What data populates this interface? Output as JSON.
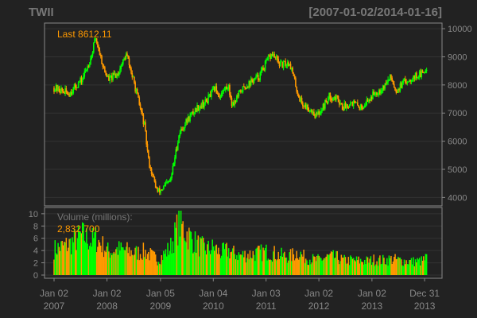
{
  "chart": {
    "symbol": "TWII",
    "range_label": "[2007-01-02/2014-01-16]",
    "last_label": "Last 8612.11",
    "volume_title": "Volume (millions):",
    "volume_last": "2,832,700"
  },
  "colors": {
    "background": "#222222",
    "axis": "#888888",
    "grid": "#333333",
    "up": "#00ff00",
    "down": "#ff9900",
    "title_gray": "#777777",
    "label_orange": "#ff9900"
  },
  "chart_data": [
    {
      "type": "candlestick",
      "title": "TWII",
      "date_range": [
        "2007-01-02",
        "2014-01-16"
      ],
      "ylim": [
        3700,
        10200
      ],
      "y_ticks": [
        4000,
        5000,
        6000,
        7000,
        8000,
        9000,
        10000
      ],
      "last_value": 8612.11,
      "x": [
        "2007-01",
        "2007-04",
        "2007-07",
        "2007-09",
        "2007-10",
        "2007-12",
        "2008-01",
        "2008-03",
        "2008-05",
        "2008-07",
        "2008-09",
        "2008-10",
        "2008-11",
        "2008-12",
        "2009-01",
        "2009-03",
        "2009-05",
        "2009-07",
        "2009-09",
        "2009-11",
        "2010-01",
        "2010-02",
        "2010-04",
        "2010-05",
        "2010-07",
        "2010-09",
        "2010-11",
        "2011-01",
        "2011-02",
        "2011-04",
        "2011-06",
        "2011-08",
        "2011-09",
        "2011-11",
        "2011-12",
        "2012-01",
        "2012-03",
        "2012-05",
        "2012-06",
        "2012-08",
        "2012-10",
        "2012-12",
        "2013-01",
        "2013-03",
        "2013-05",
        "2013-06",
        "2013-08",
        "2013-10",
        "2013-12",
        "2014-01"
      ],
      "close": [
        7900,
        7700,
        8200,
        9000,
        9700,
        8500,
        8200,
        8400,
        9100,
        7900,
        6600,
        5300,
        4700,
        4200,
        4300,
        4600,
        6300,
        6800,
        7200,
        7400,
        7900,
        7600,
        8000,
        7300,
        7800,
        8100,
        8300,
        8900,
        9100,
        8700,
        8800,
        7600,
        7300,
        7100,
        6900,
        7100,
        7600,
        7500,
        7200,
        7400,
        7200,
        7500,
        7700,
        7900,
        8300,
        7800,
        8100,
        8300,
        8400,
        8612
      ]
    },
    {
      "type": "bar",
      "title": "Volume (millions):",
      "ylim": [
        0,
        10.5
      ],
      "y_ticks": [
        0,
        2,
        4,
        6,
        8,
        10
      ],
      "last_value": 2.8327,
      "x": [
        "2007-01",
        "2007-04",
        "2007-07",
        "2007-09",
        "2007-10",
        "2007-12",
        "2008-01",
        "2008-03",
        "2008-05",
        "2008-07",
        "2008-09",
        "2008-10",
        "2008-11",
        "2008-12",
        "2009-01",
        "2009-03",
        "2009-05",
        "2009-07",
        "2009-09",
        "2009-11",
        "2010-01",
        "2010-02",
        "2010-04",
        "2010-05",
        "2010-07",
        "2010-09",
        "2010-11",
        "2011-01",
        "2011-02",
        "2011-04",
        "2011-06",
        "2011-08",
        "2011-09",
        "2011-11",
        "2011-12",
        "2012-01",
        "2012-03",
        "2012-05",
        "2012-06",
        "2012-08",
        "2012-10",
        "2012-12",
        "2013-01",
        "2013-03",
        "2013-05",
        "2013-06",
        "2013-08",
        "2013-10",
        "2013-12",
        "2014-01"
      ],
      "values": [
        4.2,
        5.0,
        6.5,
        5.5,
        6.0,
        4.5,
        3.8,
        4.2,
        4.0,
        3.6,
        3.8,
        3.5,
        3.0,
        2.6,
        3.0,
        4.5,
        8.5,
        6.5,
        5.0,
        4.2,
        4.5,
        3.6,
        4.0,
        3.6,
        3.2,
        3.4,
        3.6,
        3.8,
        3.6,
        3.2,
        3.0,
        3.8,
        3.0,
        2.6,
        2.4,
        2.6,
        3.0,
        2.8,
        2.4,
        2.4,
        2.3,
        2.3,
        2.5,
        2.4,
        2.6,
        2.5,
        2.3,
        2.2,
        2.3,
        2.8
      ]
    }
  ],
  "x_axis": {
    "tick_dates": [
      "2007-01-02",
      "2008-01-02",
      "2009-01-05",
      "2010-01-04",
      "2011-01-03",
      "2012-01-02",
      "2013-01-02",
      "2013-12-31"
    ],
    "tick_labels": [
      {
        "line1": "Jan 02",
        "line2": "2007"
      },
      {
        "line1": "Jan 02",
        "line2": "2008"
      },
      {
        "line1": "Jan 05",
        "line2": "2009"
      },
      {
        "line1": "Jan 04",
        "line2": "2010"
      },
      {
        "line1": "Jan 03",
        "line2": "2011"
      },
      {
        "line1": "Jan 02",
        "line2": "2012"
      },
      {
        "line1": "Jan 02",
        "line2": "2013"
      },
      {
        "line1": "Dec 31",
        "line2": "2013"
      }
    ]
  }
}
